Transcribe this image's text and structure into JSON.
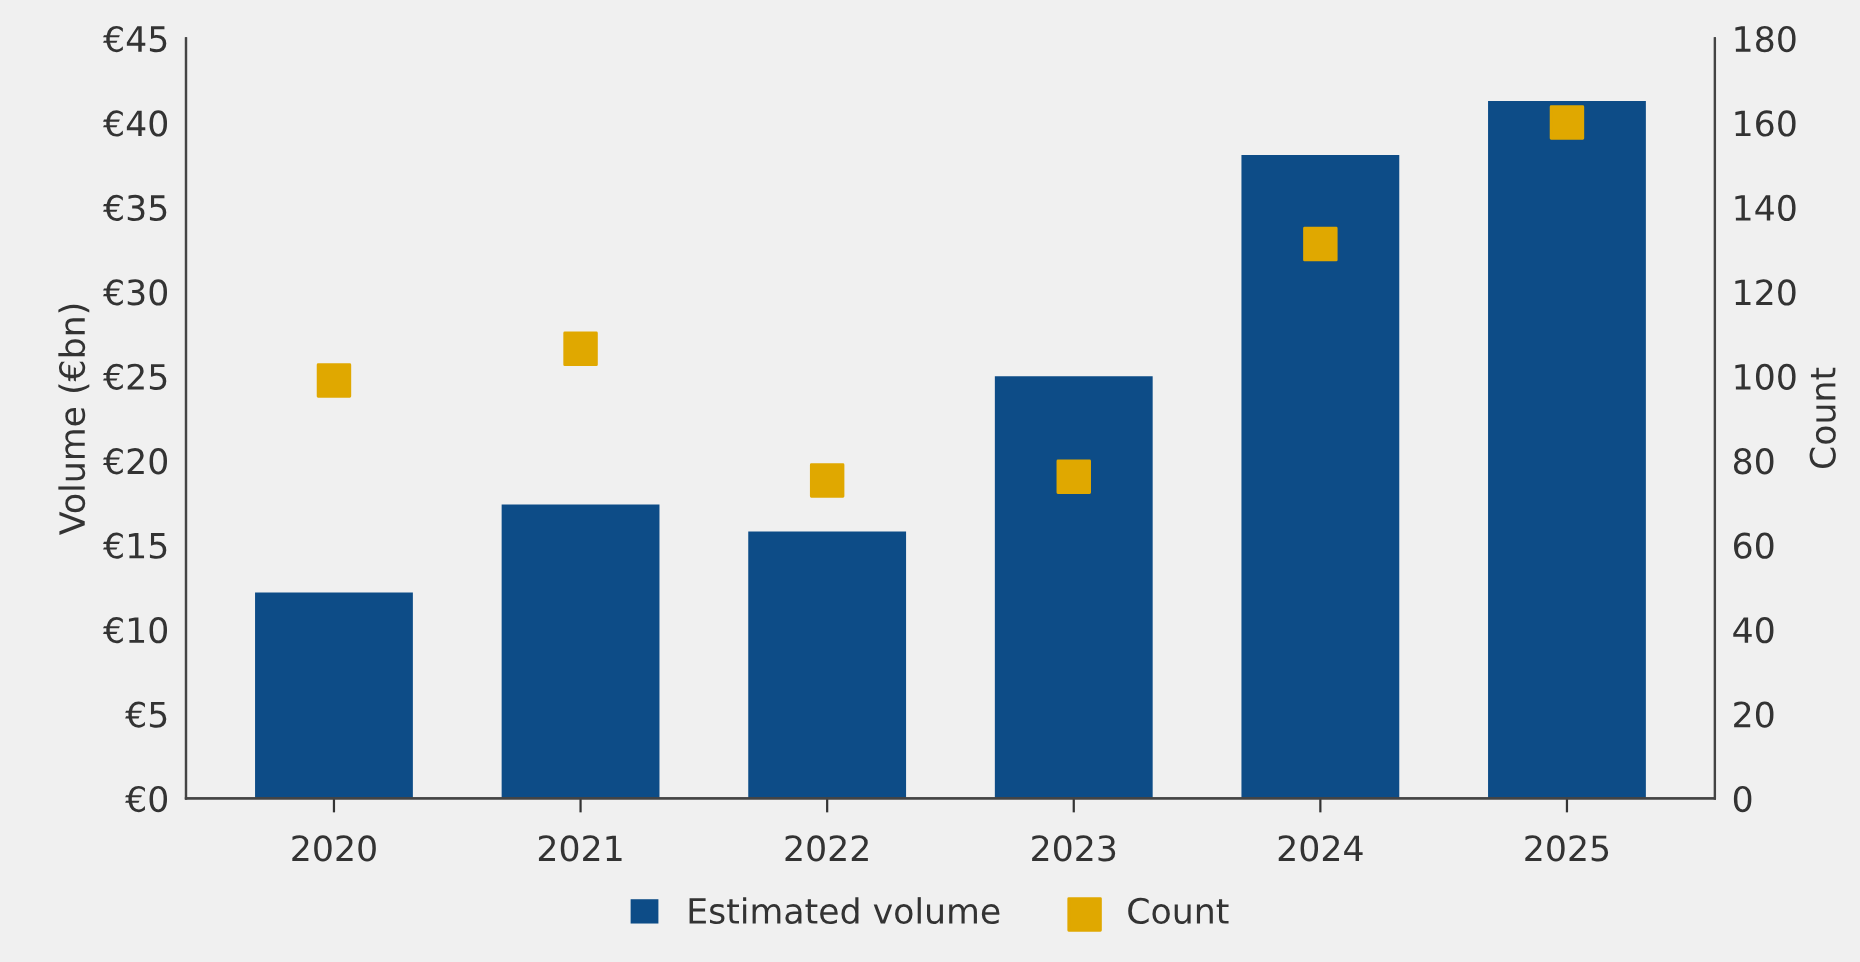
{
  "chart_data": {
    "type": "bar",
    "ylabel": "Volume (€bn)",
    "y2label": "Count",
    "categories": [
      "2020",
      "2021",
      "2022",
      "2023",
      "2024",
      "2025"
    ],
    "series": [
      {
        "name": "Estimated volume",
        "color": "#0d4c87",
        "values": [
          12.2,
          17.4,
          15.8,
          25.0,
          38.1,
          41.3
        ]
      },
      {
        "name": "Count",
        "type": "scatter",
        "axis": "y2",
        "color": "#e0a800",
        "marker": "square",
        "values": [
          99,
          106.5,
          75.3,
          76.2,
          131.3,
          160.1
        ]
      }
    ],
    "ylim": [
      0,
      45
    ],
    "yticks": [
      {
        "value": 0,
        "label": "€0"
      },
      {
        "value": 5,
        "label": "€5"
      },
      {
        "value": 10,
        "label": "€10"
      },
      {
        "value": 15,
        "label": "€15"
      },
      {
        "value": 20,
        "label": "€20"
      },
      {
        "value": 25,
        "label": "€25"
      },
      {
        "value": 30,
        "label": "€30"
      },
      {
        "value": 35,
        "label": "€35"
      },
      {
        "value": 40,
        "label": "€40"
      },
      {
        "value": 45,
        "label": "€45"
      }
    ],
    "y2lim": [
      0,
      180
    ],
    "y2ticks": [
      0,
      20,
      40,
      60,
      80,
      100,
      120,
      140,
      160,
      180
    ],
    "grid": false,
    "legend": "bottom"
  }
}
